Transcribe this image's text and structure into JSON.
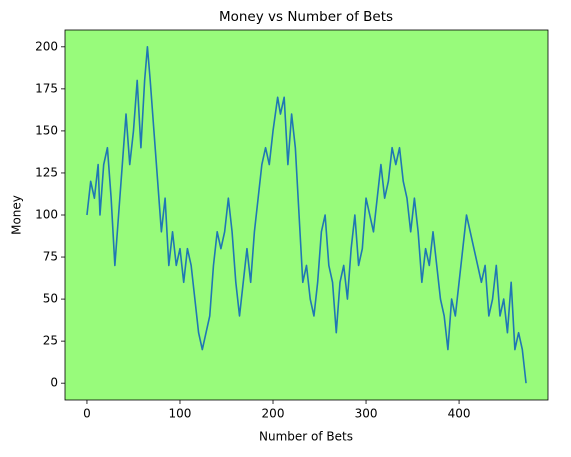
{
  "chart_data": {
    "type": "line",
    "title": "Money vs Number of Bets",
    "xlabel": "Number of Bets",
    "ylabel": "Money",
    "x": [
      0,
      4,
      8,
      12,
      14,
      18,
      22,
      26,
      30,
      34,
      38,
      42,
      46,
      50,
      54,
      58,
      62,
      65,
      68,
      72,
      76,
      80,
      84,
      88,
      92,
      96,
      100,
      104,
      108,
      112,
      116,
      120,
      124,
      128,
      132,
      136,
      140,
      144,
      148,
      152,
      156,
      160,
      164,
      168,
      172,
      176,
      180,
      184,
      188,
      192,
      196,
      200,
      205,
      208,
      212,
      216,
      220,
      224,
      228,
      232,
      236,
      240,
      244,
      248,
      252,
      256,
      260,
      264,
      268,
      272,
      276,
      280,
      284,
      288,
      292,
      296,
      300,
      304,
      308,
      312,
      316,
      320,
      324,
      328,
      332,
      336,
      340,
      344,
      348,
      352,
      356,
      360,
      364,
      368,
      372,
      376,
      380,
      384,
      388,
      392,
      396,
      400,
      404,
      408,
      412,
      416,
      420,
      424,
      428,
      432,
      436,
      440,
      444,
      448,
      452,
      456,
      460,
      464,
      468,
      472
    ],
    "series": [
      {
        "name": "Money",
        "color": "#1f77b4",
        "values": [
          100,
          120,
          110,
          130,
          100,
          130,
          140,
          110,
          70,
          100,
          130,
          160,
          130,
          150,
          180,
          140,
          180,
          200,
          180,
          150,
          120,
          90,
          110,
          70,
          90,
          70,
          80,
          60,
          80,
          70,
          50,
          30,
          20,
          30,
          40,
          70,
          90,
          80,
          90,
          110,
          90,
          60,
          40,
          60,
          80,
          60,
          90,
          110,
          130,
          140,
          130,
          150,
          170,
          160,
          170,
          130,
          160,
          140,
          100,
          60,
          70,
          50,
          40,
          60,
          90,
          100,
          70,
          60,
          30,
          60,
          70,
          50,
          80,
          100,
          70,
          80,
          110,
          100,
          90,
          110,
          130,
          110,
          120,
          140,
          130,
          140,
          120,
          110,
          90,
          110,
          90,
          60,
          80,
          70,
          90,
          70,
          50,
          40,
          20,
          50,
          40,
          60,
          80,
          100,
          90,
          80,
          70,
          60,
          70,
          40,
          50,
          70,
          40,
          50,
          30,
          60,
          20,
          30,
          20,
          0
        ]
      }
    ],
    "xlim": [
      -23.6,
      495.6
    ],
    "xticks": [
      0,
      100,
      200,
      300,
      400
    ],
    "ylim": [
      -10,
      210
    ],
    "yticks": [
      0,
      25,
      50,
      75,
      100,
      125,
      150,
      175,
      200
    ],
    "background": "#98fb7b",
    "grid": false
  }
}
